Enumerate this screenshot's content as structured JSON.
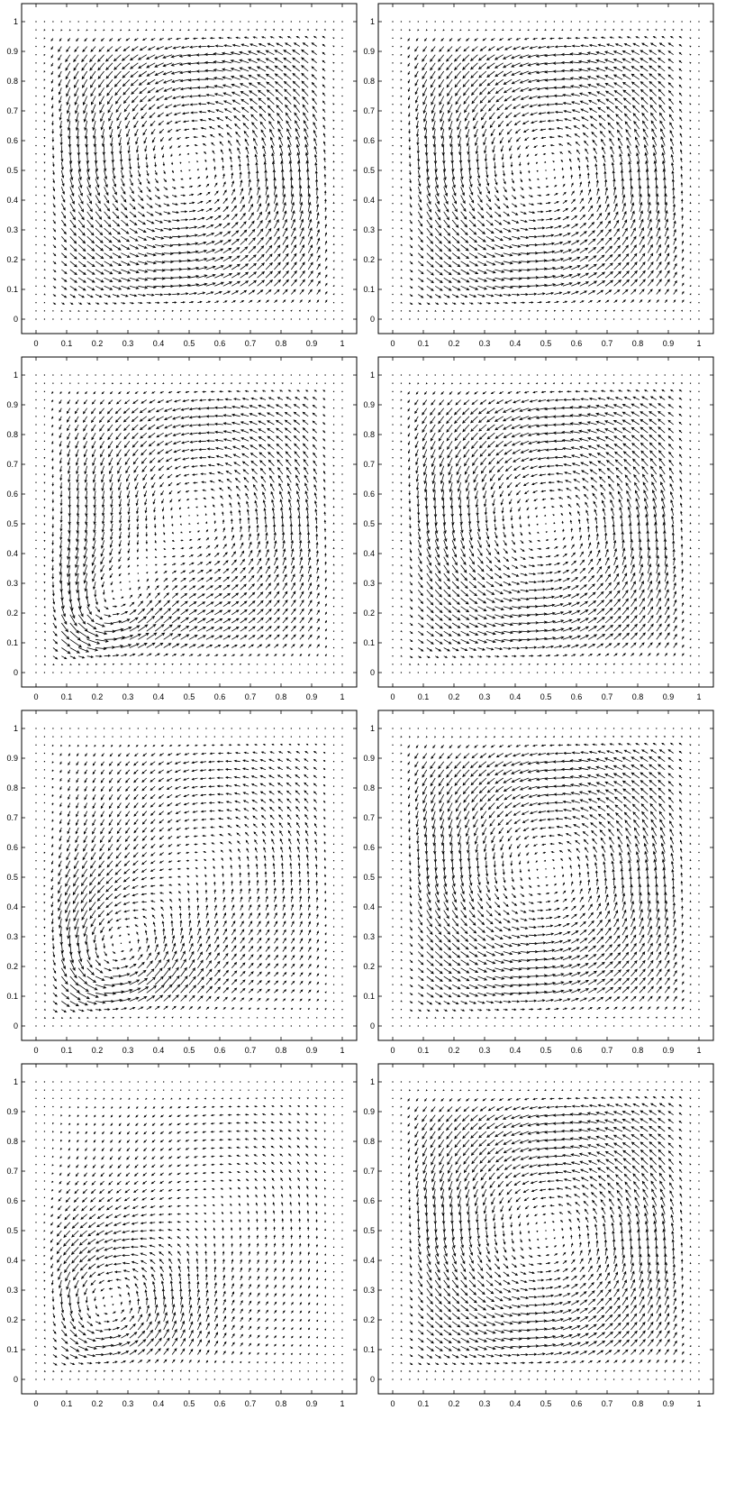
{
  "figure": {
    "rows": 4,
    "cols": 2,
    "background": "#ffffff",
    "arrow_color": "#000000",
    "axis_color": "#000000"
  },
  "chart_data": [
    {
      "type": "quiver",
      "panel": "row1-left",
      "title": "",
      "xlabel": "",
      "ylabel": "",
      "xlim": [
        0,
        1
      ],
      "ylim": [
        0,
        1
      ],
      "xticks": [
        "0",
        "0.1",
        "0.2",
        "0.3",
        "0.4",
        "0.5",
        "0.6",
        "0.7",
        "0.8",
        "0.9",
        "1"
      ],
      "yticks": [
        "0",
        "0.1",
        "0.2",
        "0.3",
        "0.4",
        "0.5",
        "0.6",
        "0.7",
        "0.8",
        "0.9",
        "1"
      ],
      "grid": false,
      "vortices": [
        {
          "cx": 0.5,
          "cy": 0.52,
          "strength": 1.0,
          "radius": 0.38
        }
      ]
    },
    {
      "type": "quiver",
      "panel": "row1-right",
      "title": "",
      "xlabel": "",
      "ylabel": "",
      "xlim": [
        0,
        1
      ],
      "ylim": [
        0,
        1
      ],
      "xticks": [
        "0",
        "0.1",
        "0.2",
        "0.3",
        "0.4",
        "0.5",
        "0.6",
        "0.7",
        "0.8",
        "0.9",
        "1"
      ],
      "yticks": [
        "0",
        "0.1",
        "0.2",
        "0.3",
        "0.4",
        "0.5",
        "0.6",
        "0.7",
        "0.8",
        "0.9",
        "1"
      ],
      "grid": false,
      "vortices": [
        {
          "cx": 0.5,
          "cy": 0.5,
          "strength": 1.0,
          "radius": 0.38
        }
      ]
    },
    {
      "type": "quiver",
      "panel": "row2-left",
      "title": "",
      "xlabel": "",
      "ylabel": "",
      "xlim": [
        0,
        1
      ],
      "ylim": [
        0,
        1
      ],
      "xticks": [
        "0",
        "0.1",
        "0.2",
        "0.3",
        "0.4",
        "0.5",
        "0.6",
        "0.7",
        "0.8",
        "0.9",
        "1"
      ],
      "yticks": [
        "0",
        "0.1",
        "0.2",
        "0.3",
        "0.4",
        "0.5",
        "0.6",
        "0.7",
        "0.8",
        "0.9",
        "1"
      ],
      "grid": false,
      "vortices": [
        {
          "cx": 0.52,
          "cy": 0.53,
          "strength": 0.85,
          "radius": 0.34
        },
        {
          "cx": 0.2,
          "cy": 0.2,
          "strength": 0.9,
          "radius": 0.15
        }
      ]
    },
    {
      "type": "quiver",
      "panel": "row2-right",
      "title": "",
      "xlabel": "",
      "ylabel": "",
      "xlim": [
        0,
        1
      ],
      "ylim": [
        0,
        1
      ],
      "xticks": [
        "0",
        "0.1",
        "0.2",
        "0.3",
        "0.4",
        "0.5",
        "0.6",
        "0.7",
        "0.8",
        "0.9",
        "1"
      ],
      "yticks": [
        "0",
        "0.1",
        "0.2",
        "0.3",
        "0.4",
        "0.5",
        "0.6",
        "0.7",
        "0.8",
        "0.9",
        "1"
      ],
      "grid": false,
      "vortices": [
        {
          "cx": 0.5,
          "cy": 0.5,
          "strength": 1.0,
          "radius": 0.38
        }
      ]
    },
    {
      "type": "quiver",
      "panel": "row3-left",
      "title": "",
      "xlabel": "",
      "ylabel": "",
      "xlim": [
        0,
        1
      ],
      "ylim": [
        0,
        1
      ],
      "xticks": [
        "0",
        "0.1",
        "0.2",
        "0.3",
        "0.4",
        "0.5",
        "0.6",
        "0.7",
        "0.8",
        "0.9",
        "1"
      ],
      "yticks": [
        "0",
        "0.1",
        "0.2",
        "0.3",
        "0.4",
        "0.5",
        "0.6",
        "0.7",
        "0.8",
        "0.9",
        "1"
      ],
      "grid": false,
      "vortices": [
        {
          "cx": 0.55,
          "cy": 0.55,
          "strength": 0.6,
          "radius": 0.32
        },
        {
          "cx": 0.23,
          "cy": 0.23,
          "strength": 1.0,
          "radius": 0.19
        }
      ]
    },
    {
      "type": "quiver",
      "panel": "row3-right",
      "title": "",
      "xlabel": "",
      "ylabel": "",
      "xlim": [
        0,
        1
      ],
      "ylim": [
        0,
        1
      ],
      "xticks": [
        "0",
        "0.1",
        "0.2",
        "0.3",
        "0.4",
        "0.5",
        "0.6",
        "0.7",
        "0.8",
        "0.9",
        "1"
      ],
      "yticks": [
        "0",
        "0.1",
        "0.2",
        "0.3",
        "0.4",
        "0.5",
        "0.6",
        "0.7",
        "0.8",
        "0.9",
        "1"
      ],
      "grid": false,
      "vortices": [
        {
          "cx": 0.5,
          "cy": 0.52,
          "strength": 1.0,
          "radius": 0.38
        }
      ]
    },
    {
      "type": "quiver",
      "panel": "row4-left",
      "title": "",
      "xlabel": "",
      "ylabel": "",
      "xlim": [
        0,
        1
      ],
      "ylim": [
        0,
        1
      ],
      "xticks": [
        "0",
        "0.1",
        "0.2",
        "0.3",
        "0.4",
        "0.5",
        "0.6",
        "0.7",
        "0.8",
        "0.9",
        "1"
      ],
      "yticks": [
        "0",
        "0.1",
        "0.2",
        "0.3",
        "0.4",
        "0.5",
        "0.6",
        "0.7",
        "0.8",
        "0.9",
        "1"
      ],
      "grid": false,
      "vortices": [
        {
          "cx": 0.58,
          "cy": 0.57,
          "strength": 0.35,
          "radius": 0.28
        },
        {
          "cx": 0.22,
          "cy": 0.24,
          "strength": 1.0,
          "radius": 0.2
        }
      ]
    },
    {
      "type": "quiver",
      "panel": "row4-right",
      "title": "",
      "xlabel": "",
      "ylabel": "",
      "xlim": [
        0,
        1
      ],
      "ylim": [
        0,
        1
      ],
      "xticks": [
        "0",
        "0.1",
        "0.2",
        "0.3",
        "0.4",
        "0.5",
        "0.6",
        "0.7",
        "0.8",
        "0.9",
        "1"
      ],
      "yticks": [
        "0",
        "0.1",
        "0.2",
        "0.3",
        "0.4",
        "0.5",
        "0.6",
        "0.7",
        "0.8",
        "0.9",
        "1"
      ],
      "grid": false,
      "vortices": [
        {
          "cx": 0.5,
          "cy": 0.49,
          "strength": 1.0,
          "radius": 0.38
        }
      ]
    }
  ]
}
